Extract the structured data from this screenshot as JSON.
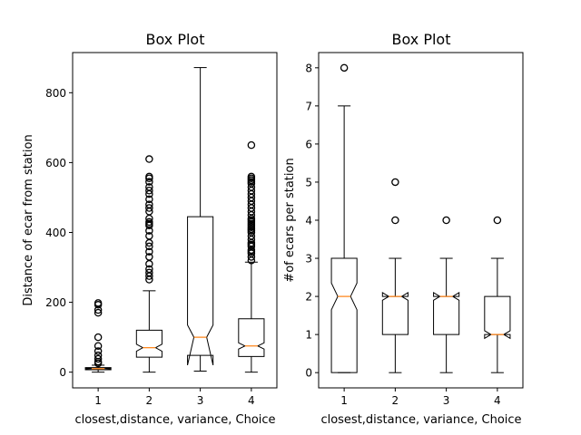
{
  "chart_data": [
    {
      "type": "boxplot",
      "title": "Box Plot",
      "xlabel": "closest,distance, variance, Choice",
      "ylabel": "Distance of ecar from station",
      "categories": [
        "1",
        "2",
        "3",
        "4"
      ],
      "notched": true,
      "ylim": [
        -45,
        915
      ],
      "yticks": [
        0,
        200,
        400,
        600,
        800
      ],
      "colors": {
        "box": "#000000",
        "median": "#ff7f0e",
        "flier": "#000000"
      },
      "boxes": [
        {
          "whislo": 0,
          "q1": 7,
          "med": 10,
          "q3": 13,
          "whishi": 20,
          "notch_lo": 9,
          "notch_hi": 11,
          "fliers": [
            25,
            30,
            38,
            48,
            60,
            75,
            100,
            170,
            178,
            193,
            198
          ]
        },
        {
          "whislo": 0,
          "q1": 43,
          "med": 70,
          "q3": 120,
          "whishi": 233,
          "notch_lo": 60,
          "notch_hi": 80,
          "fliers": [
            265,
            275,
            285,
            295,
            310,
            330,
            345,
            360,
            370,
            390,
            405,
            420,
            425,
            430,
            440,
            460,
            470,
            480,
            495,
            510,
            520,
            530,
            545,
            555,
            560,
            610
          ]
        },
        {
          "whislo": 3,
          "q1": 48,
          "med": 100,
          "q3": 445,
          "whishi": 872,
          "notch_lo": 20,
          "notch_hi": 135,
          "fliers": []
        },
        {
          "whislo": 0,
          "q1": 45,
          "med": 75,
          "q3": 153,
          "whishi": 315,
          "notch_lo": 66,
          "notch_hi": 84,
          "fliers": [
            320,
            330,
            340,
            345,
            350,
            360,
            365,
            370,
            380,
            390,
            400,
            405,
            410,
            415,
            420,
            425,
            430,
            435,
            440,
            450,
            460,
            470,
            480,
            490,
            500,
            510,
            520,
            530,
            540,
            545,
            550,
            555,
            560,
            650
          ]
        }
      ]
    },
    {
      "type": "boxplot",
      "title": "Box Plot",
      "xlabel": "closest,distance, variance, Choice",
      "ylabel": "#of ecars per station",
      "categories": [
        "1",
        "2",
        "3",
        "4"
      ],
      "notched": true,
      "ylim": [
        -0.4,
        8.4
      ],
      "yticks": [
        0,
        1,
        2,
        3,
        4,
        5,
        6,
        7,
        8
      ],
      "colors": {
        "box": "#000000",
        "median": "#ff7f0e",
        "flier": "#000000"
      },
      "boxes": [
        {
          "whislo": 0,
          "q1": 0,
          "med": 2,
          "q3": 3,
          "whishi": 7,
          "notch_lo": 1.65,
          "notch_hi": 2.35,
          "fliers": [
            8
          ]
        },
        {
          "whislo": 0,
          "q1": 1,
          "med": 2,
          "q3": 2,
          "whishi": 3,
          "notch_lo": 1.9,
          "notch_hi": 2.1,
          "fliers": [
            4,
            5
          ]
        },
        {
          "whislo": 0,
          "q1": 1,
          "med": 2,
          "q3": 2,
          "whishi": 3,
          "notch_lo": 1.9,
          "notch_hi": 2.1,
          "fliers": [
            4
          ]
        },
        {
          "whislo": 0,
          "q1": 1,
          "med": 1,
          "q3": 2,
          "whishi": 3,
          "notch_lo": 0.9,
          "notch_hi": 1.1,
          "fliers": [
            4
          ]
        }
      ]
    }
  ]
}
